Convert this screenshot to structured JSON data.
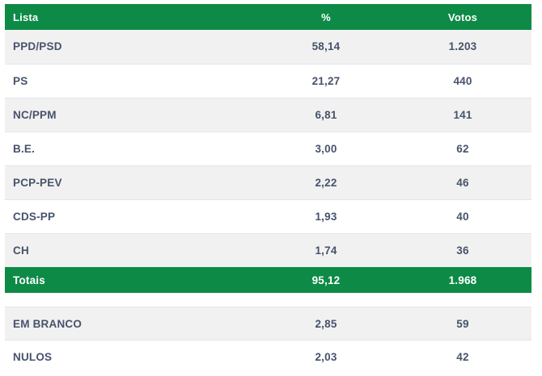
{
  "colors": {
    "header_green": "#0d8a46",
    "header_text": "#ffffff",
    "row_alt_gray": "#f1f1f1",
    "text_dark": "#47536b",
    "row_border": "#e0e6ec"
  },
  "results_table": {
    "columns": [
      "Lista",
      "%",
      "Votos"
    ],
    "rows": [
      {
        "list": "PPD/PSD",
        "percent": "58,14",
        "votes": "1.203"
      },
      {
        "list": "PS",
        "percent": "21,27",
        "votes": "440"
      },
      {
        "list": "NC/PPM",
        "percent": "6,81",
        "votes": "141"
      },
      {
        "list": "B.E.",
        "percent": "3,00",
        "votes": "62"
      },
      {
        "list": "PCP-PEV",
        "percent": "2,22",
        "votes": "46"
      },
      {
        "list": "CDS-PP",
        "percent": "1,93",
        "votes": "40"
      },
      {
        "list": "CH",
        "percent": "1,74",
        "votes": "36"
      }
    ],
    "totals": {
      "list": "Totais",
      "percent": "95,12",
      "votes": "1.968"
    }
  },
  "other_votes_table": {
    "rows": [
      {
        "list": "EM BRANCO",
        "percent": "2,85",
        "votes": "59"
      },
      {
        "list": "NULOS",
        "percent": "2,03",
        "votes": "42"
      }
    ]
  }
}
